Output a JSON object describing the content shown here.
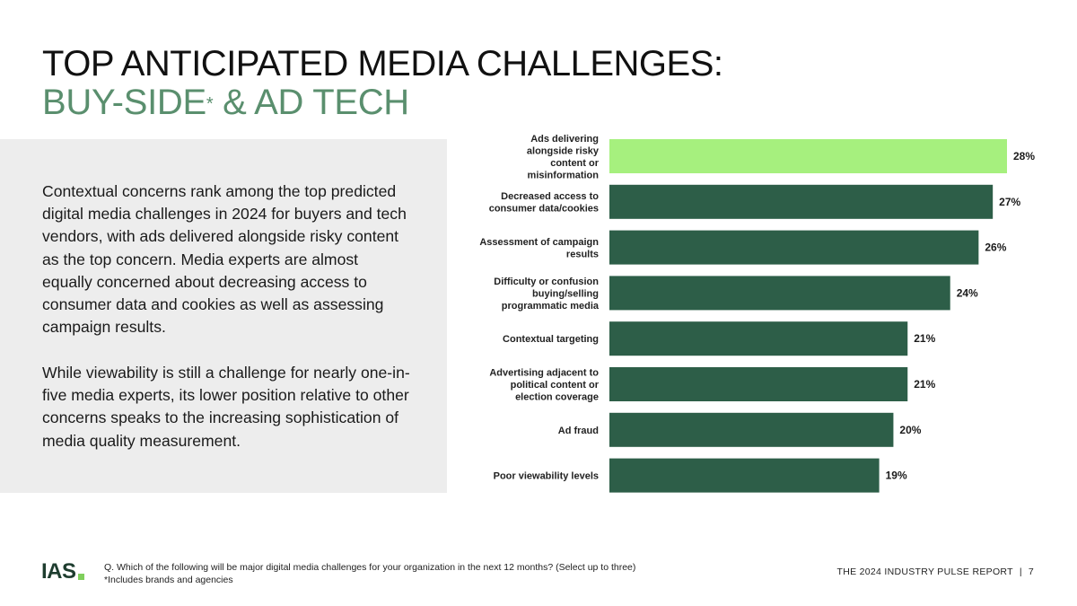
{
  "title": {
    "line1": "TOP ANTICIPATED MEDIA CHALLENGES:",
    "line2_main": "BUY-SIDE",
    "line2_mark": "*",
    "line2_rest": " & AD TECH"
  },
  "body": {
    "paragraph1": "Contextual concerns rank among the top predicted digital media challenges in 2024 for buyers and tech vendors, with ads delivered alongside risky content as the top concern. Media experts are almost equally concerned about decreasing access to consumer data and cookies as well as assessing campaign results.",
    "paragraph2": "While viewability is still a challenge for nearly one-in-five media experts, its lower position relative to other concerns speaks to the increasing sophistication of media quality measurement."
  },
  "chart_data": {
    "type": "bar",
    "orientation": "horizontal",
    "categories": [
      "Ads delivering alongside risky content or misinformation",
      "Decreased access to consumer data/cookies",
      "Assessment of campaign results",
      "Difficulty or confusion buying/selling programmatic media",
      "Contextual targeting",
      "Advertising adjacent to political content or election coverage",
      "Ad fraud",
      "Poor viewability levels"
    ],
    "category_lines": [
      [
        "Ads delivering",
        "alongside risky",
        "content or",
        "misinformation"
      ],
      [
        "Decreased access to",
        "consumer data/cookies"
      ],
      [
        "Assessment of campaign",
        "results"
      ],
      [
        "Difficulty or confusion",
        "buying/selling",
        "programmatic media"
      ],
      [
        "Contextual targeting"
      ],
      [
        "Advertising adjacent to",
        "political content or",
        "election coverage"
      ],
      [
        "Ad fraud"
      ],
      [
        "Poor viewability levels"
      ]
    ],
    "values": [
      28,
      27,
      26,
      24,
      21,
      21,
      20,
      19
    ],
    "value_labels": [
      "28%",
      "27%",
      "26%",
      "24%",
      "21%",
      "21%",
      "20%",
      "19%"
    ],
    "unit": "%",
    "xlim": [
      0,
      28
    ],
    "highlight_index": 0,
    "colors": {
      "highlight": "#a6f07e",
      "default": "#2d5e48"
    }
  },
  "footer": {
    "logo_text": "IAS",
    "question": "Q. Which of the following will be major digital media challenges for your organization in the next 12 months? (Select up to three)",
    "note": "*Includes brands and agencies",
    "report_title": "THE 2024 INDUSTRY PULSE REPORT",
    "separator": "|",
    "page_number": "7"
  }
}
